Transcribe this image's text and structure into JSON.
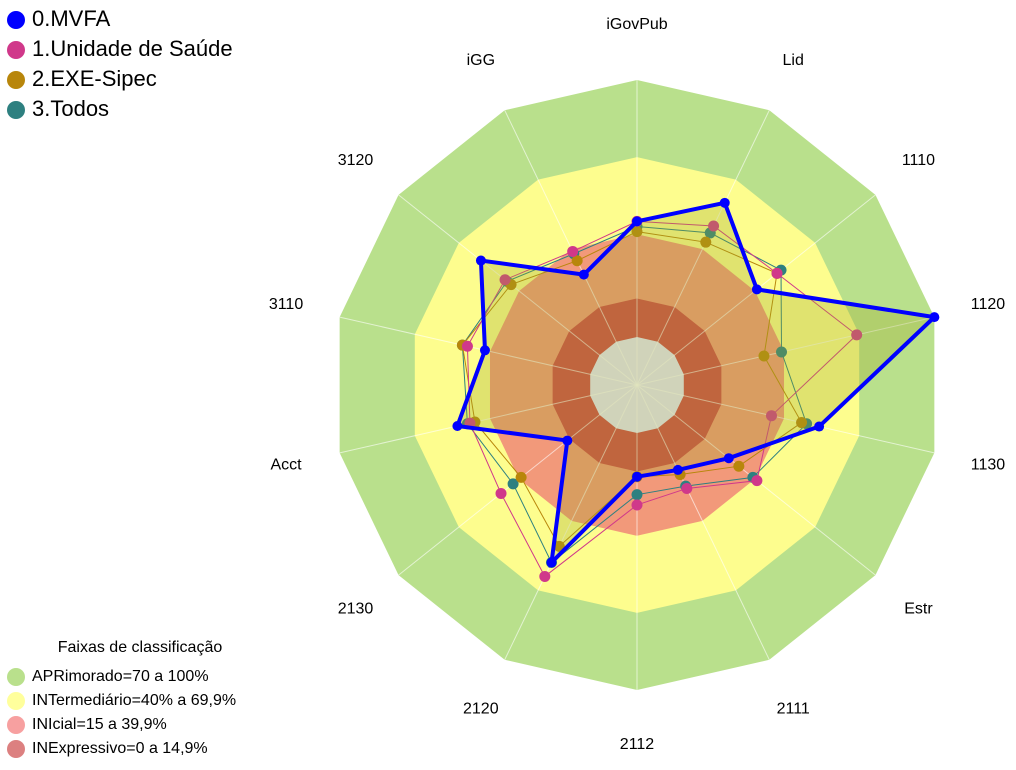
{
  "chart_data": {
    "type": "radar",
    "categories": [
      "iGovPub",
      "Lid",
      "1110",
      "1120",
      "1130",
      "Estr",
      "2111",
      "2112",
      "2120",
      "2130",
      "Acct",
      "3110",
      "3120",
      "iGG"
    ],
    "rlim": [
      0,
      100
    ],
    "series": [
      {
        "name": "0.MVFA",
        "color": "#0000ff",
        "values": [
          45,
          60,
          41,
          100,
          54,
          27,
          18,
          17,
          58,
          16,
          53,
          42,
          59,
          29
        ]
      },
      {
        "name": "1.Unidade de Saúde",
        "color": "#d0388a",
        "values": [
          45,
          50,
          51,
          69,
          35,
          41,
          26,
          28,
          64,
          49,
          48,
          49,
          47,
          39
        ]
      },
      {
        "name": "2.EXE-Sipec",
        "color": "#b8860b",
        "values": [
          41,
          43,
          51,
          32,
          47,
          32,
          20,
          17,
          51,
          39,
          46,
          51,
          44,
          35
        ]
      },
      {
        "name": "3.Todos",
        "color": "#2e8080",
        "values": [
          43,
          47,
          53,
          39,
          49,
          39,
          25,
          24,
          58,
          43,
          49,
          51,
          46,
          38
        ]
      }
    ],
    "bands_title": "Faixas de classificação",
    "bands": [
      {
        "label": "APRimorado=70 a 100%",
        "color": "#b9e08c",
        "legend_color": "#b9e08c",
        "from": 70,
        "to": 100
      },
      {
        "label": "INTermediário=40% a 69,9%",
        "color": "#fdfd8e",
        "legend_color": "#ffff9c",
        "from": 40,
        "to": 70
      },
      {
        "label": "INIcial=15 a 39,9%",
        "color": "#f2997a",
        "legend_color": "#f7a0a0",
        "from": 15,
        "to": 40
      },
      {
        "label": "INExpressivo=0 a 14,9%",
        "color": "#cf4848",
        "legend_color": "#dc8080",
        "from": 0,
        "to": 15
      }
    ]
  }
}
